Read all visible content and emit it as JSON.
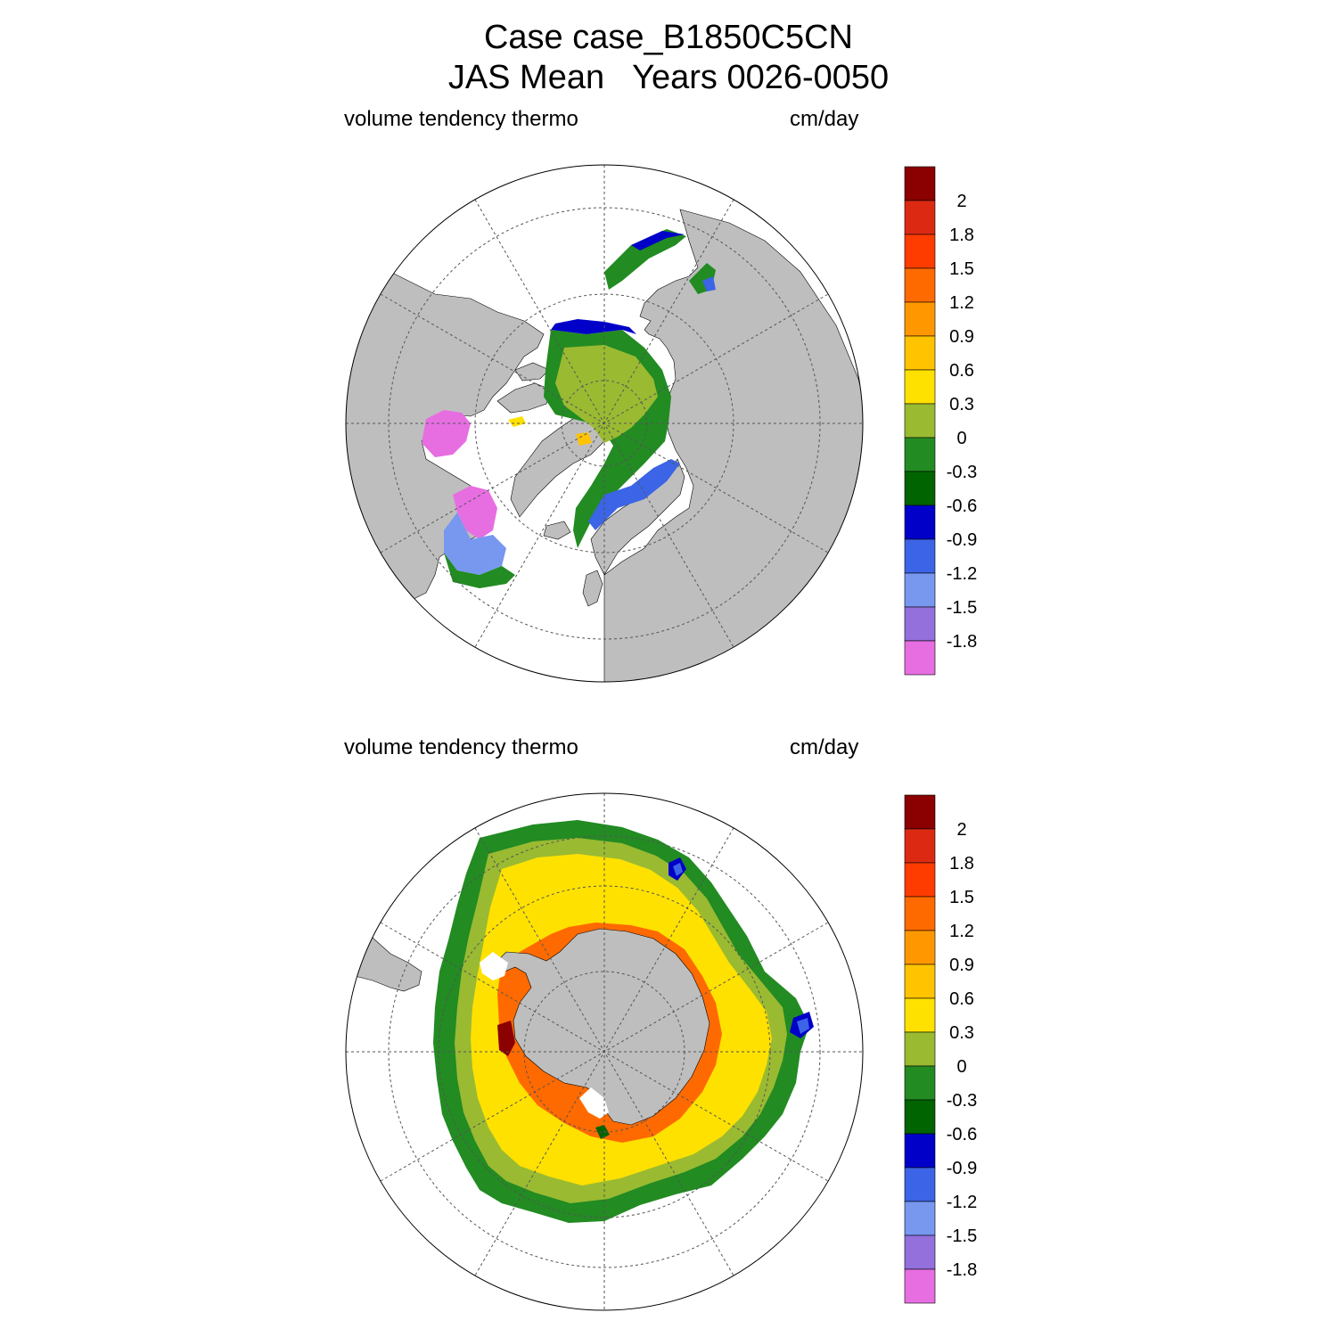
{
  "title": {
    "line1": "Case case_B1850C5CN",
    "line2": "JAS Mean   Years 0026-0050"
  },
  "panels": [
    {
      "hemisphere": "north",
      "variable_label": "volume tendency thermo",
      "units_label": "cm/day"
    },
    {
      "hemisphere": "south",
      "variable_label": "volume tendency thermo",
      "units_label": "cm/day"
    }
  ],
  "colorbar": {
    "labels": [
      "2",
      "1.8",
      "1.5",
      "1.2",
      "0.9",
      "0.6",
      "0.3",
      "0",
      "-0.3",
      "-0.6",
      "-0.9",
      "-1.2",
      "-1.5",
      "-1.8"
    ],
    "colors": [
      "#8b0000",
      "#dc2a12",
      "#ff3c00",
      "#ff6a00",
      "#ff9800",
      "#ffc300",
      "#ffe100",
      "#9aba32",
      "#228b22",
      "#006400",
      "#0000c8",
      "#3c64e6",
      "#7898f0",
      "#9370db",
      "#e66ee1"
    ]
  },
  "palette": {
    "land": "#bebebe",
    "ocean": "#ffffff",
    "grid": "#555555"
  }
}
